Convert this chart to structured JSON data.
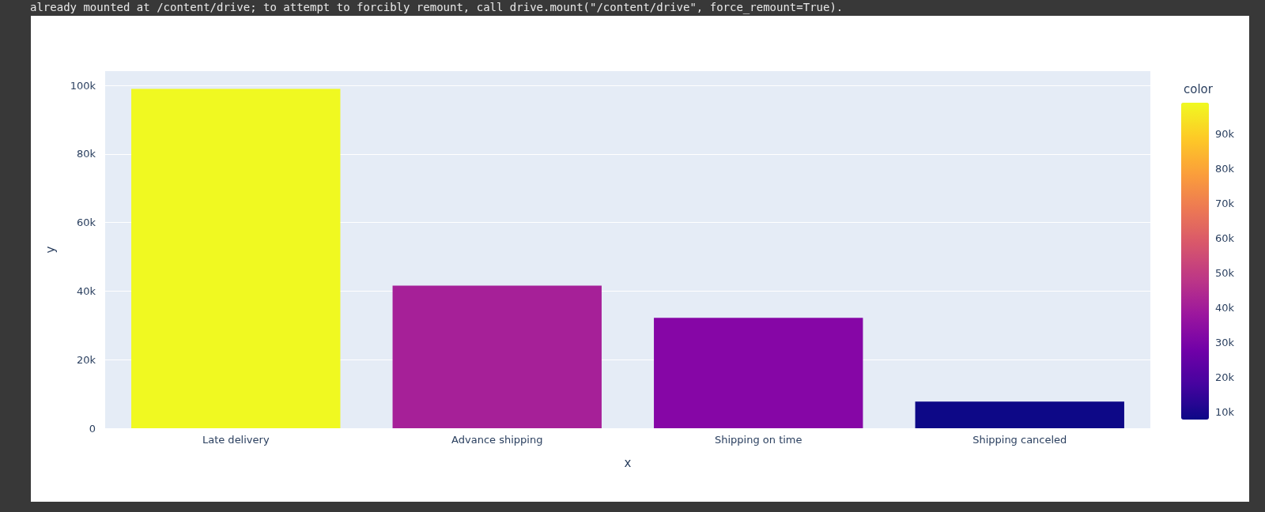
{
  "chart_data": {
    "type": "bar",
    "annotations": [
      "already mounted at /content/drive; to attempt to forcibly remount, call drive.mount(\"/content/drive\", force_remount=True)."
    ],
    "xlabel": "x",
    "ylabel": "y",
    "clabel": "color",
    "categories": [
      "Late delivery",
      "Advance shipping",
      "Shipping on time",
      "Shipping canceled"
    ],
    "values": [
      99000,
      41600,
      32200,
      7800
    ],
    "colors": [
      "#f0f921",
      "#a62098",
      "#8606a6",
      "#0d0887"
    ],
    "ylim": [
      0,
      104200
    ],
    "yticks": [
      {
        "value": 0,
        "label": "0"
      },
      {
        "value": 20000,
        "label": "20k"
      },
      {
        "value": 40000,
        "label": "40k"
      },
      {
        "value": 60000,
        "label": "60k"
      },
      {
        "value": 80000,
        "label": "80k"
      },
      {
        "value": 100000,
        "label": "100k"
      }
    ],
    "clim": [
      7800,
      99000
    ],
    "cticks": [
      {
        "value": 10000,
        "label": "10k"
      },
      {
        "value": 20000,
        "label": "20k"
      },
      {
        "value": 30000,
        "label": "30k"
      },
      {
        "value": 40000,
        "label": "40k"
      },
      {
        "value": 50000,
        "label": "50k"
      },
      {
        "value": 60000,
        "label": "60k"
      },
      {
        "value": 70000,
        "label": "70k"
      },
      {
        "value": 80000,
        "label": "80k"
      },
      {
        "value": 90000,
        "label": "90k"
      }
    ],
    "grid": "y"
  }
}
